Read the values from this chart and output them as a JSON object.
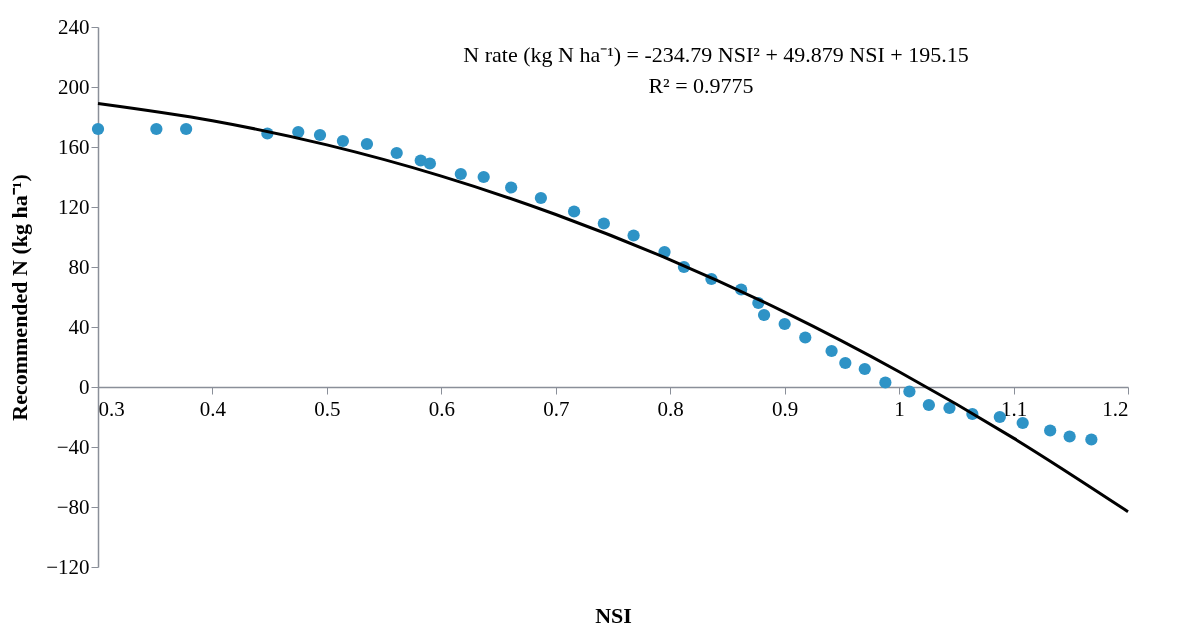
{
  "chart_data": {
    "type": "scatter",
    "xlabel": "NSI",
    "ylabel": "Recommended N (kg ha⁻¹)",
    "annotations": [
      "N rate (kg N ha⁻¹) = -234.79 NSI² + 49.879 NSI + 195.15",
      "R² = 0.9775"
    ],
    "xlim": [
      0.3,
      1.2
    ],
    "xticks": [
      0.3,
      0.4,
      0.5,
      0.6,
      0.7,
      0.8,
      0.9,
      1,
      1.1,
      1.2
    ],
    "ylim": [
      -120,
      240
    ],
    "yticks": [
      -120,
      -80,
      -40,
      0,
      40,
      80,
      120,
      160,
      200,
      240
    ],
    "grid": false,
    "series": [
      {
        "marker": "circle",
        "color": "#2e93c6",
        "x": [
          0.3,
          0.351,
          0.377,
          0.448,
          0.475,
          0.494,
          0.514,
          0.535,
          0.561,
          0.582,
          0.59,
          0.617,
          0.637,
          0.661,
          0.687,
          0.716,
          0.742,
          0.768,
          0.795,
          0.812,
          0.836,
          0.862,
          0.877,
          0.882,
          0.9,
          0.918,
          0.941,
          0.953,
          0.97,
          0.988,
          1.009,
          1.026,
          1.044,
          1.064,
          1.088,
          1.108,
          1.132,
          1.149,
          1.168
        ],
        "values": [
          172,
          172,
          172,
          169,
          170,
          168,
          164,
          162,
          156,
          151,
          149,
          142,
          140,
          133,
          126,
          117,
          109,
          101,
          90,
          80,
          72,
          65,
          56,
          48,
          42,
          33,
          24,
          16,
          12,
          3,
          -3,
          -12,
          -14,
          -18,
          -20,
          -24,
          -29,
          -33,
          -35
        ]
      },
      {
        "type": "line",
        "color": "#000000",
        "line_style": "solid",
        "x": [
          0.3,
          0.4,
          0.5,
          0.6,
          0.7,
          0.8,
          0.9,
          1,
          1.1,
          1.2
        ],
        "values": [
          189,
          177.5,
          161.4,
          140.6,
          115,
          84.8,
          49.9,
          10.2,
          -34.1,
          -83.1
        ]
      }
    ]
  }
}
